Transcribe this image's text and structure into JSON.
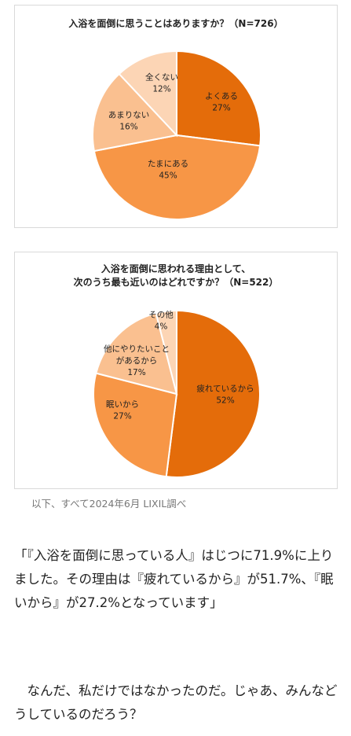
{
  "chart_data": [
    {
      "type": "pie",
      "title": "入浴を面倒に思うことはありますか？（N=726）",
      "categories": [
        "よくある",
        "たまにある",
        "あまりない",
        "全くない"
      ],
      "values": [
        27,
        45,
        16,
        12
      ],
      "value_labels": [
        "27%",
        "45%",
        "16%",
        "12%"
      ],
      "colors": [
        "#e46c0a",
        "#f79646",
        "#fac090",
        "#fcd5b5"
      ]
    },
    {
      "type": "pie",
      "title_lines": [
        "入浴を面倒に思われる理由として、",
        "次のうち最も近いのはどれですか？（N=522）"
      ],
      "categories": [
        "疲れているから",
        "眠いから",
        "他にやりたいことがあるから",
        "その他"
      ],
      "label_lines": [
        [
          "疲れているから"
        ],
        [
          "眠いから"
        ],
        [
          "他にやりたいこと",
          "があるから"
        ],
        [
          "その他"
        ]
      ],
      "values": [
        52,
        27,
        17,
        4
      ],
      "value_labels": [
        "52%",
        "27%",
        "17%",
        "4%"
      ],
      "colors": [
        "#e46c0a",
        "#f79646",
        "#fac090",
        "#fcd5b5"
      ]
    }
  ],
  "caption": "以下、すべて2024年6月 LIXIL調べ",
  "paragraphs": [
    "「『入浴を面倒に思っている人』はじつに71.9%に上りました。その理由は『疲れているから』が51.7%、『眠いから』が27.2%となっています」",
    "　なんだ、私だけではなかったのだ。じゃあ、みんなどうしているのだろう？"
  ]
}
